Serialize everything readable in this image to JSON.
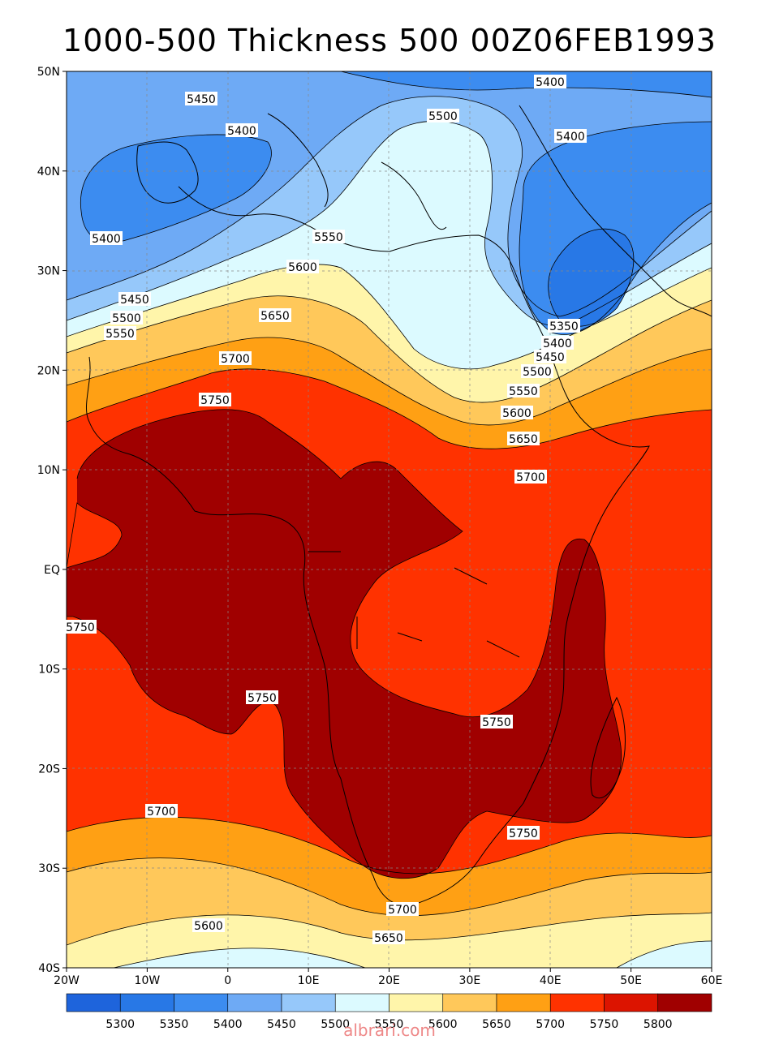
{
  "title": "1000-500 Thickness 500 00Z06FEB1993",
  "watermark": "albrari.com",
  "map": {
    "lon_range": [
      -20,
      60
    ],
    "lat_range": [
      -40,
      50
    ],
    "lon_ticks": [
      "20W",
      "10W",
      "0",
      "10E",
      "20E",
      "30E",
      "40E",
      "50E",
      "60E"
    ],
    "lat_ticks": [
      "50N",
      "40N",
      "30N",
      "20N",
      "10N",
      "EQ",
      "10S",
      "20S",
      "30S",
      "40S"
    ],
    "gridlines": "dashed",
    "contour_labels": [
      "5400",
      "5450",
      "5400",
      "5500",
      "5400",
      "5400",
      "5550",
      "5600",
      "5450",
      "5500",
      "5550",
      "5650",
      "5700",
      "5750",
      "5350",
      "5400",
      "5450",
      "5500",
      "5550",
      "5600",
      "5650",
      "5700",
      "5750",
      "5750",
      "5750",
      "5700",
      "5750",
      "5700",
      "5600",
      "5650"
    ]
  },
  "colorbar": {
    "levels": [
      "5300",
      "5350",
      "5400",
      "5450",
      "5500",
      "5550",
      "5600",
      "5650",
      "5700",
      "5750",
      "5800"
    ],
    "colors": [
      "#1e64dc",
      "#2878e6",
      "#3c8cf0",
      "#6eaaf5",
      "#96c8fa",
      "#dcfaff",
      "#fff5aa",
      "#ffc85a",
      "#ffa014",
      "#ff3200",
      "#dc1400",
      "#a00000"
    ]
  }
}
